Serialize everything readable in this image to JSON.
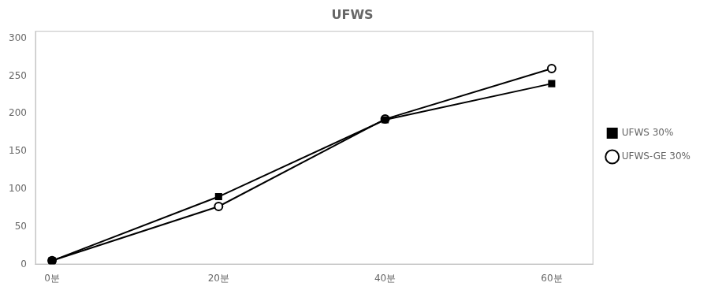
{
  "chart_data": {
    "type": "line",
    "title": "UFWS",
    "x": [
      0,
      20,
      40,
      60
    ],
    "series": [
      {
        "name": "UFWS 30%",
        "color": "#000000",
        "marker": "square",
        "values": [
          5,
          90,
          192,
          240
        ]
      },
      {
        "name": "UFWS-GE 30%",
        "color": "#000000",
        "marker": "open_circle",
        "values": [
          5,
          77,
          193,
          260
        ]
      }
    ],
    "xlim": [
      -2,
      65
    ],
    "xticks": [
      {
        "value": 0,
        "label": "0분"
      },
      {
        "value": 20,
        "label": "20분"
      },
      {
        "value": 40,
        "label": "40분"
      },
      {
        "value": 60,
        "label": "60분"
      }
    ],
    "ylim": [
      0,
      310
    ],
    "yticks": [
      0,
      50,
      100,
      150,
      200,
      250,
      300
    ],
    "grid": false,
    "legend": "right"
  }
}
